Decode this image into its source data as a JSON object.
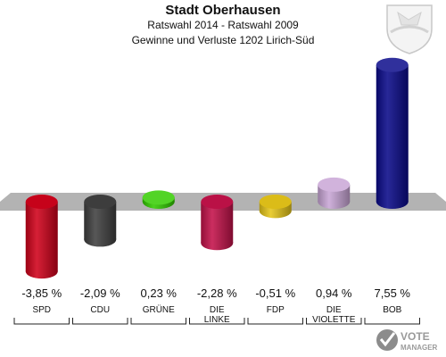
{
  "header": {
    "title": "Stadt Oberhausen",
    "subtitle": "Ratswahl 2014 - Ratswahl 2009",
    "description": "Gewinne und Verluste 1202 Lirich-Süd"
  },
  "chart_data": {
    "type": "bar",
    "categories": [
      "SPD",
      "CDU",
      "GRÜNE",
      "DIE LINKE",
      "FDP",
      "DIE VIOLETTE",
      "BOB"
    ],
    "category_lines": [
      [
        "SPD"
      ],
      [
        "CDU"
      ],
      [
        "GRÜNE"
      ],
      [
        "DIE",
        "LINKE"
      ],
      [
        "FDP"
      ],
      [
        "DIE",
        "VIOLETTE"
      ],
      [
        "BOB"
      ]
    ],
    "values": [
      -3.85,
      -2.09,
      0.23,
      -2.28,
      -0.51,
      0.94,
      7.55
    ],
    "value_labels": [
      "-3,85 %",
      "-2,09 %",
      "0,23 %",
      "-2,28 %",
      "-0,51 %",
      "0,94 %",
      "7,55 %"
    ],
    "colors": [
      "#d0021b",
      "#404040",
      "#33cc00",
      "#c4124a",
      "#e6c619",
      "#c9a6d6",
      "#0b0b8a"
    ],
    "baseline_color": "#b3b3b3",
    "grid": false,
    "legend": "none"
  },
  "branding": {
    "logo_line1": "VOTE",
    "logo_line2": "MANAGER"
  }
}
